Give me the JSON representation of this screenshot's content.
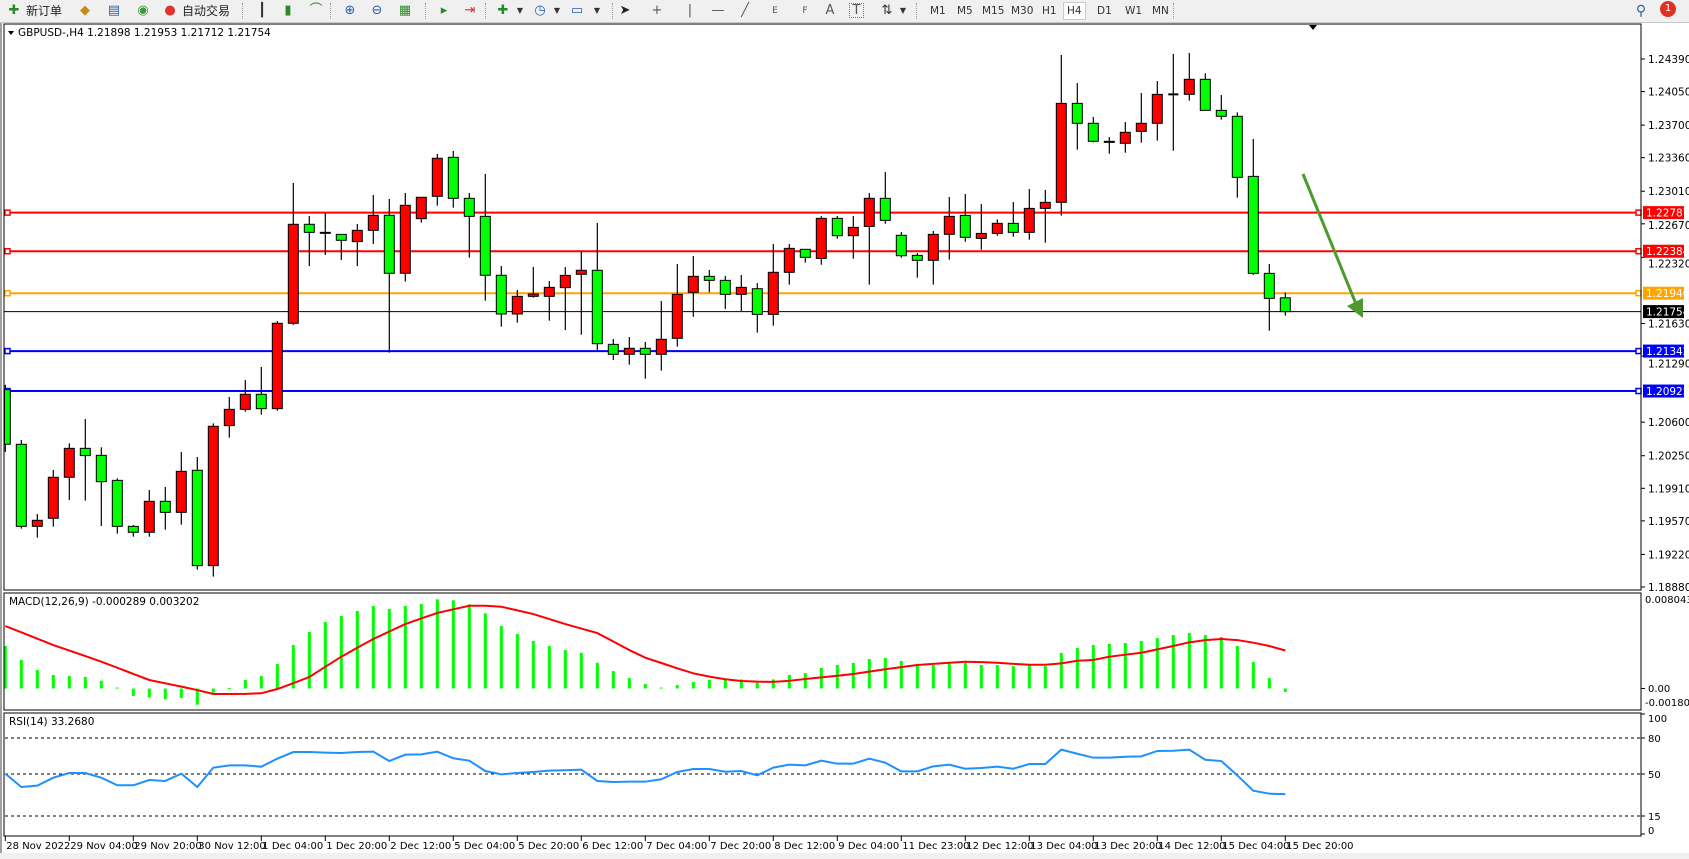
{
  "toolbar": {
    "new_order": "新订单",
    "auto_trading": "自动交易",
    "timeframes": [
      "M1",
      "M5",
      "M15",
      "M30",
      "H1",
      "H4",
      "D1",
      "W1",
      "MN"
    ],
    "active_timeframe": "H4",
    "notification_count": "1",
    "drawing_tools": {
      "text": "A",
      "label": "T",
      "fibo_e": "E",
      "fibo_f": "F"
    }
  },
  "chart": {
    "header": "GBPUSD-,H4  1.21898 1.21953 1.21712 1.21754",
    "bull_color": "#FF0000",
    "bear_color": "#00FF00",
    "price_axis_labels": [
      "1.24390",
      "1.24050",
      "1.23700",
      "1.23360",
      "1.23010",
      "1.22670",
      "1.22320",
      "1.21630",
      "1.21290",
      "1.20600",
      "1.20250",
      "1.19910",
      "1.19570",
      "1.19220",
      "1.18880"
    ],
    "horizontal_lines": [
      {
        "price": "1.22787",
        "color": "#FF0000"
      },
      {
        "price": "1.22384",
        "color": "#FF0000"
      },
      {
        "price": "1.21946",
        "color": "#FFA500"
      },
      {
        "price": "1.21342",
        "color": "#0000FF"
      },
      {
        "price": "1.20925",
        "color": "#0000FF"
      }
    ],
    "current_price": "1.21754",
    "arrow": {
      "color": "#4E9A2F",
      "direction": "down"
    }
  },
  "macd": {
    "label": "MACD(12,26,9) -0.000289 0.003202",
    "axis_labels": {
      "top": "0.008043",
      "zero": "0.00",
      "bottom": "-0.001807"
    },
    "histogram_color": "#00FF00",
    "signal_color": "#FF0000"
  },
  "rsi": {
    "label": "RSI(14) 33.2680",
    "levels": [
      "100",
      "80",
      "50",
      "15",
      "0"
    ],
    "line_color": "#1E90FF"
  },
  "time_axis": [
    "28 Nov 2022",
    "29 Nov 04:00",
    "29 Nov 20:00",
    "30 Nov 12:00",
    "1 Dec 04:00",
    "1 Dec 20:00",
    "2 Dec 12:00",
    "5 Dec 04:00",
    "5 Dec 20:00",
    "6 Dec 12:00",
    "7 Dec 04:00",
    "7 Dec 20:00",
    "8 Dec 12:00",
    "9 Dec 04:00",
    "11 Dec 23:00",
    "12 Dec 12:00",
    "13 Dec 04:00",
    "13 Dec 20:00",
    "14 Dec 12:00",
    "15 Dec 04:00",
    "15 Dec 20:00"
  ],
  "chart_data": {
    "type": "candlestick",
    "symbol": "GBPUSD-",
    "timeframe": "H4",
    "ylim": [
      1.1888,
      1.2439
    ],
    "ohlc": [
      [
        1.2094,
        1.2099,
        1.2029,
        1.2037
      ],
      [
        1.20369,
        1.20414,
        1.19489,
        1.19513
      ],
      [
        1.19513,
        1.19642,
        1.19395,
        1.19576
      ],
      [
        1.19597,
        1.20101,
        1.1951,
        1.20025
      ],
      [
        1.20025,
        1.20379,
        1.19788,
        1.20327
      ],
      [
        1.20327,
        1.20633,
        1.19781,
        1.20251
      ],
      [
        1.20254,
        1.20338,
        1.19517,
        1.19979
      ],
      [
        1.19993,
        1.20014,
        1.19437,
        1.19513
      ],
      [
        1.19513,
        1.19527,
        1.19405,
        1.19451
      ],
      [
        1.19451,
        1.19892,
        1.19405,
        1.19774
      ],
      [
        1.19774,
        1.19924,
        1.19478,
        1.19659
      ],
      [
        1.19659,
        1.20289,
        1.19531,
        1.20087
      ],
      [
        1.20098,
        1.20237,
        1.19061,
        1.19103
      ],
      [
        1.19103,
        1.20588,
        1.18988,
        1.20557
      ],
      [
        1.20564,
        1.20863,
        1.20439,
        1.20734
      ],
      [
        1.20734,
        1.2104,
        1.2071,
        1.20891
      ],
      [
        1.20891,
        1.21176,
        1.20679,
        1.20741
      ],
      [
        1.20741,
        1.21656,
        1.2072,
        1.21632
      ],
      [
        1.21632,
        1.23096,
        1.21614,
        1.22665
      ],
      [
        1.22665,
        1.22752,
        1.2223,
        1.22581
      ],
      [
        1.22581,
        1.2278,
        1.22345,
        1.22574
      ],
      [
        1.2256,
        1.2256,
        1.22293,
        1.22498
      ],
      [
        1.22484,
        1.22668,
        1.2223,
        1.22602
      ],
      [
        1.22602,
        1.22971,
        1.2246,
        1.22759
      ],
      [
        1.22759,
        1.22929,
        1.21326,
        1.22154
      ],
      [
        1.22154,
        1.22992,
        1.22067,
        1.22863
      ],
      [
        1.22724,
        1.22947,
        1.22682,
        1.22947
      ],
      [
        1.22957,
        1.23399,
        1.2286,
        1.23354
      ],
      [
        1.23364,
        1.2343,
        1.22839,
        1.22936
      ],
      [
        1.22936,
        1.22992,
        1.22317,
        1.22748
      ],
      [
        1.22748,
        1.2319,
        1.21868,
        1.22133
      ],
      [
        1.22133,
        1.2223,
        1.21597,
        1.21729
      ],
      [
        1.21729,
        1.2198,
        1.21639,
        1.21913
      ],
      [
        1.21913,
        1.2222,
        1.219,
        1.21938
      ],
      [
        1.21913,
        1.22073,
        1.21659,
        1.22007
      ],
      [
        1.22004,
        1.22219,
        1.21562,
        1.22132
      ],
      [
        1.22143,
        1.22379,
        1.21513,
        1.22185
      ],
      [
        1.22185,
        1.22679,
        1.21353,
        1.21419
      ],
      [
        1.21412,
        1.21468,
        1.21249,
        1.21308
      ],
      [
        1.21308,
        1.21489,
        1.212,
        1.21371
      ],
      [
        1.21371,
        1.21437,
        1.21054,
        1.21308
      ],
      [
        1.21308,
        1.21865,
        1.21138,
        1.21465
      ],
      [
        1.21475,
        1.22251,
        1.21388,
        1.21934
      ],
      [
        1.21955,
        1.22334,
        1.21701,
        1.22122
      ],
      [
        1.22122,
        1.22188,
        1.21955,
        1.2208
      ],
      [
        1.2208,
        1.22126,
        1.21781,
        1.21934
      ],
      [
        1.21934,
        1.22136,
        1.2176,
        1.22007
      ],
      [
        1.21993,
        1.22052,
        1.21534,
        1.21725
      ],
      [
        1.21725,
        1.22459,
        1.21607,
        1.22164
      ],
      [
        1.22164,
        1.22459,
        1.22035,
        1.22414
      ],
      [
        1.22404,
        1.22404,
        1.22265,
        1.2232
      ],
      [
        1.22309,
        1.22751,
        1.22243,
        1.22727
      ],
      [
        1.22727,
        1.22751,
        1.22515,
        1.22546
      ],
      [
        1.22546,
        1.22751,
        1.22306,
        1.22633
      ],
      [
        1.22643,
        1.22991,
        1.22035,
        1.22936
      ],
      [
        1.22936,
        1.2321,
        1.22671,
        1.22706
      ],
      [
        1.2255,
        1.22584,
        1.22316,
        1.22337
      ],
      [
        1.22341,
        1.22365,
        1.22108,
        1.22289
      ],
      [
        1.22289,
        1.22595,
        1.22035,
        1.2256
      ],
      [
        1.2256,
        1.2295,
        1.22296,
        1.22748
      ],
      [
        1.22758,
        1.22981,
        1.22483,
        1.22529
      ],
      [
        1.22518,
        1.22876,
        1.224,
        1.2257
      ],
      [
        1.2257,
        1.22716,
        1.22546,
        1.22675
      ],
      [
        1.22675,
        1.22897,
        1.22536,
        1.22581
      ],
      [
        1.22581,
        1.23033,
        1.22504,
        1.22831
      ],
      [
        1.22831,
        1.23023,
        1.22473,
        1.22894
      ],
      [
        1.22894,
        1.24432,
        1.22755,
        1.23927
      ],
      [
        1.23927,
        1.24139,
        1.23444,
        1.23719
      ],
      [
        1.23719,
        1.23785,
        1.2352,
        1.23531
      ],
      [
        1.23531,
        1.23576,
        1.23402,
        1.2352
      ],
      [
        1.2351,
        1.23732,
        1.23412,
        1.23625
      ],
      [
        1.23635,
        1.24035,
        1.23517,
        1.23719
      ],
      [
        1.23719,
        1.2416,
        1.23538,
        1.24021
      ],
      [
        1.24021,
        1.24442,
        1.23433,
        1.24021
      ],
      [
        1.24021,
        1.24453,
        1.23955,
        1.24178
      ],
      [
        1.24178,
        1.2424,
        1.23854,
        1.23854
      ],
      [
        1.23854,
        1.24014,
        1.23757,
        1.23792
      ],
      [
        1.23792,
        1.23833,
        1.22943,
        1.23155
      ],
      [
        1.23165,
        1.23555,
        1.22136,
        1.22153
      ],
      [
        1.22153,
        1.2225,
        1.21555,
        1.21892
      ],
      [
        1.21898,
        1.21953,
        1.21712,
        1.21754
      ]
    ],
    "macd_ylim": [
      -0.001807,
      0.008043
    ],
    "macd_histogram": [
      0.00358,
      0.0024,
      0.00156,
      0.00114,
      0.00105,
      0.00097,
      0.00066,
      8e-05,
      -0.00063,
      -0.00074,
      -0.00091,
      -0.0008,
      -0.00136,
      -0.00035,
      5e-05,
      0.00072,
      0.00105,
      0.00206,
      0.00366,
      0.00476,
      0.0056,
      0.00611,
      0.00653,
      0.00695,
      0.0067,
      0.00695,
      0.00711,
      0.00751,
      0.00743,
      0.00709,
      0.00633,
      0.00526,
      0.00459,
      0.004,
      0.00358,
      0.00324,
      0.00301,
      0.00217,
      0.00147,
      0.00088,
      0.00038,
      8e-05,
      0.00029,
      0.00055,
      0.00072,
      0.00072,
      0.00077,
      0.00049,
      0.00077,
      0.00114,
      0.00131,
      0.00173,
      0.00198,
      0.00215,
      0.00248,
      0.00257,
      0.00232,
      0.00198,
      0.00198,
      0.00215,
      0.00215,
      0.00198,
      0.00198,
      0.00189,
      0.00198,
      0.00189,
      0.00299,
      0.00341,
      0.00366,
      0.00375,
      0.00383,
      0.004,
      0.00425,
      0.0045,
      0.00467,
      0.0045,
      0.00434,
      0.00358,
      0.00223,
      0.00088,
      -0.000289
    ],
    "macd_signal": [
      0.00526,
      0.00473,
      0.0042,
      0.00366,
      0.0032,
      0.00273,
      0.00226,
      0.00175,
      0.00123,
      0.00072,
      0.00044,
      0.00016,
      -0.00013,
      -0.00046,
      -0.00046,
      -0.00045,
      -0.0004,
      -4e-05,
      0.00045,
      0.00097,
      0.00183,
      0.00268,
      0.00343,
      0.00417,
      0.0048,
      0.00543,
      0.0059,
      0.00636,
      0.00667,
      0.00697,
      0.00697,
      0.00689,
      0.00658,
      0.00627,
      0.00585,
      0.00543,
      0.00505,
      0.00467,
      0.00396,
      0.00324,
      0.0026,
      0.00215,
      0.0017,
      0.00128,
      0.001,
      0.00078,
      0.00063,
      0.00058,
      0.00056,
      0.00065,
      0.0008,
      0.00094,
      0.00108,
      0.00122,
      0.00142,
      0.00162,
      0.0018,
      0.00198,
      0.00208,
      0.00217,
      0.00226,
      0.00222,
      0.00217,
      0.00208,
      0.002,
      0.002,
      0.00212,
      0.00234,
      0.0024,
      0.00268,
      0.00285,
      0.00301,
      0.0033,
      0.00358,
      0.00389,
      0.00408,
      0.00417,
      0.00408,
      0.00386,
      0.00358,
      0.003202
    ],
    "rsi_ylim": [
      0,
      100
    ],
    "rsi": [
      50.3,
      39.2,
      40.3,
      46.9,
      50.8,
      50.8,
      46.9,
      40.6,
      40.6,
      45.0,
      44.2,
      50.3,
      39.2,
      55.3,
      57.2,
      57.2,
      56.1,
      62.8,
      68.3,
      68.3,
      67.8,
      67.5,
      68.3,
      68.6,
      60.8,
      66.1,
      66.4,
      68.6,
      63.1,
      61.1,
      52.5,
      49.7,
      50.8,
      51.7,
      52.8,
      53.1,
      53.6,
      44.2,
      43.3,
      43.6,
      43.6,
      45.6,
      51.7,
      54.2,
      54.2,
      51.9,
      52.5,
      48.9,
      55.3,
      57.8,
      57.2,
      61.1,
      58.6,
      58.6,
      62.8,
      59.4,
      52.2,
      52.2,
      56.4,
      57.8,
      54.4,
      55.0,
      56.1,
      54.4,
      58.3,
      58.3,
      70.3,
      66.9,
      63.6,
      63.6,
      64.4,
      64.7,
      69.2,
      69.4,
      70.3,
      61.9,
      60.8,
      48.9,
      36.1,
      33.6,
      33.268
    ]
  }
}
